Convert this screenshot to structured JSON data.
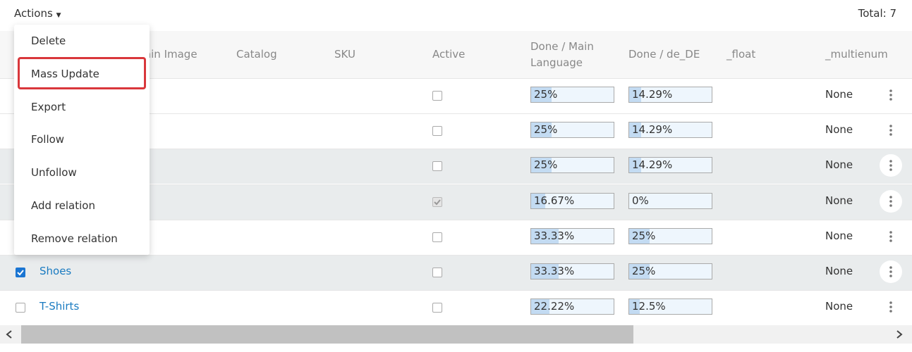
{
  "toolbar": {
    "actions": "Actions",
    "total": "Total: 7"
  },
  "menu": {
    "items": [
      "Delete",
      "Mass Update",
      "Export",
      "Follow",
      "Unfollow",
      "Add relation",
      "Remove relation"
    ],
    "outlined": 1
  },
  "table": {
    "columns": [
      "Main Image",
      "Catalog",
      "SKU",
      "Active",
      "Done / Main Language",
      "Done / de_DE",
      "_float",
      "_multienum"
    ],
    "rows": [
      {
        "name": null,
        "selected": false,
        "shaded": false,
        "active": false,
        "done_main": {
          "value": 25,
          "label": "25%"
        },
        "done_de": {
          "value": 14.29,
          "label": "14.29%"
        },
        "multienum": "None"
      },
      {
        "name": null,
        "selected": false,
        "shaded": false,
        "active": false,
        "done_main": {
          "value": 25,
          "label": "25%"
        },
        "done_de": {
          "value": 14.29,
          "label": "14.29%"
        },
        "multienum": "None"
      },
      {
        "name": null,
        "selected": false,
        "shaded": true,
        "active": false,
        "done_main": {
          "value": 25,
          "label": "25%"
        },
        "done_de": {
          "value": 14.29,
          "label": "14.29%"
        },
        "multienum": "None"
      },
      {
        "name": null,
        "selected": false,
        "shaded": true,
        "active": true,
        "done_main": {
          "value": 16.67,
          "label": "16.67%"
        },
        "done_de": {
          "value": 0,
          "label": "0%"
        },
        "multienum": "None"
      },
      {
        "name": null,
        "selected": false,
        "shaded": false,
        "active": false,
        "done_main": {
          "value": 33.33,
          "label": "33.33%"
        },
        "done_de": {
          "value": 25,
          "label": "25%"
        },
        "multienum": "None"
      },
      {
        "name": "Shoes",
        "selected": true,
        "shaded": true,
        "active": false,
        "done_main": {
          "value": 33.33,
          "label": "33.33%"
        },
        "done_de": {
          "value": 25,
          "label": "25%"
        },
        "multienum": "None"
      },
      {
        "name": "T-Shirts",
        "selected": false,
        "shaded": false,
        "active": false,
        "done_main": {
          "value": 22.22,
          "label": "22.22%"
        },
        "done_de": {
          "value": 12.5,
          "label": "12.5%"
        },
        "multienum": "None"
      }
    ]
  }
}
